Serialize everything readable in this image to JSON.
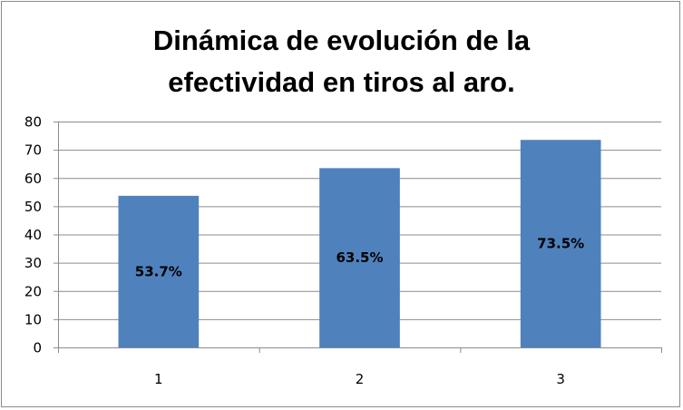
{
  "chart_data": {
    "type": "bar",
    "title_lines": [
      "Dinámica de evolución de la",
      "efectividad en tiros al aro."
    ],
    "categories": [
      "1",
      "2",
      "3"
    ],
    "values": [
      53.7,
      63.5,
      73.5
    ],
    "data_labels": [
      "53.7%",
      "63.5%",
      "73.5%"
    ],
    "ylim": [
      0,
      80
    ],
    "yticks": [
      0,
      10,
      20,
      30,
      40,
      50,
      60,
      70,
      80
    ],
    "grid": true,
    "bar_color": "#4f81bd",
    "grid_color": "#8c8c8c",
    "legend": "none"
  }
}
